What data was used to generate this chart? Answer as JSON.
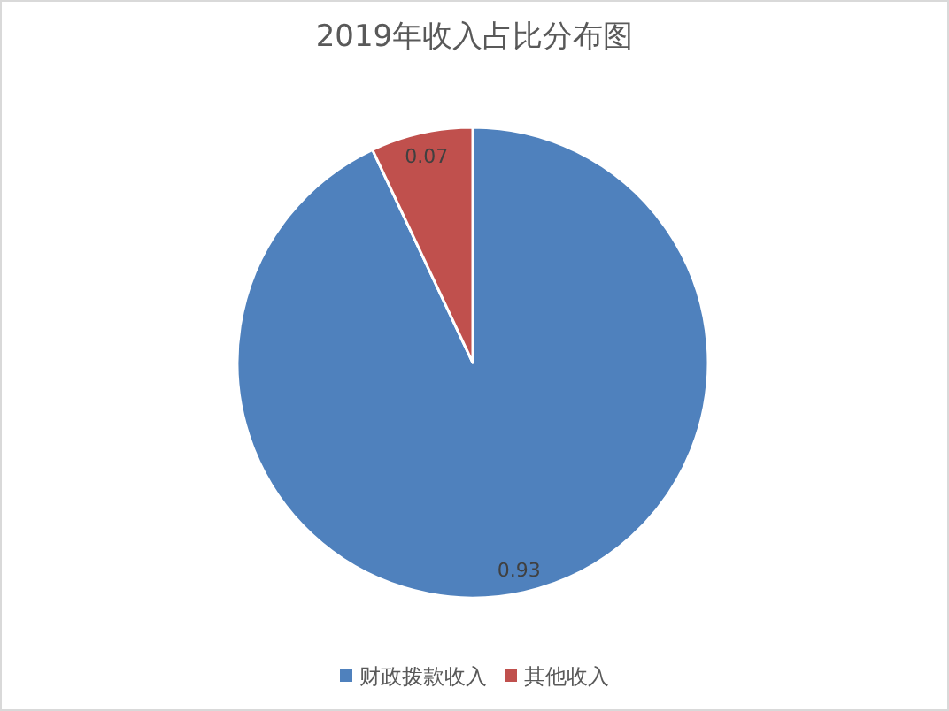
{
  "chart_data": {
    "type": "pie",
    "title": "2019年收入占比分布图",
    "categories": [
      "财政拨款收入",
      "其他收入"
    ],
    "values": [
      0.93,
      0.07
    ],
    "colors": [
      "#4f81bd",
      "#c0504d"
    ],
    "data_labels": true,
    "legend": "bottom"
  }
}
